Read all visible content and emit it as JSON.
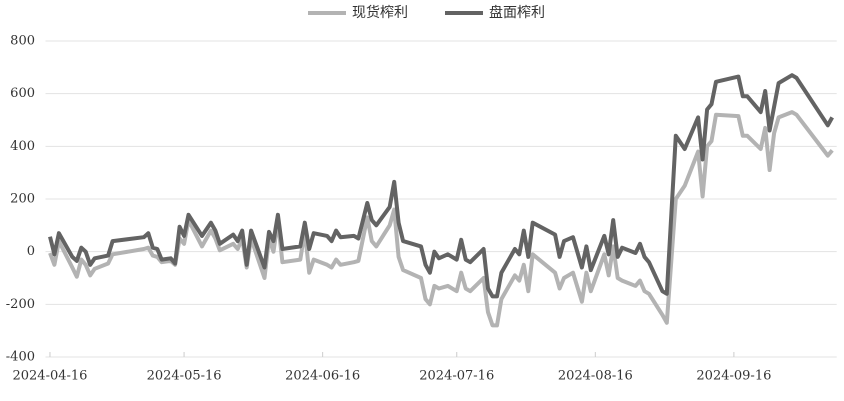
{
  "chart_data": {
    "type": "line",
    "x": [
      "2024-04-16",
      "2024-04-17",
      "2024-04-18",
      "2024-04-21",
      "2024-04-22",
      "2024-04-23",
      "2024-04-24",
      "2024-04-25",
      "2024-04-26",
      "2024-04-29",
      "2024-04-30",
      "2024-05-07",
      "2024-05-08",
      "2024-05-09",
      "2024-05-10",
      "2024-05-11",
      "2024-05-13",
      "2024-05-14",
      "2024-05-15",
      "2024-05-16",
      "2024-05-17",
      "2024-05-20",
      "2024-05-22",
      "2024-05-23",
      "2024-05-24",
      "2024-05-27",
      "2024-05-28",
      "2024-05-29",
      "2024-05-30",
      "2024-05-31",
      "2024-06-03",
      "2024-06-04",
      "2024-06-05",
      "2024-06-06",
      "2024-06-07",
      "2024-06-11",
      "2024-06-12",
      "2024-06-13",
      "2024-06-14",
      "2024-06-17",
      "2024-06-18",
      "2024-06-19",
      "2024-06-20",
      "2024-06-23",
      "2024-06-24",
      "2024-06-26",
      "2024-06-27",
      "2024-06-28",
      "2024-07-01",
      "2024-07-02",
      "2024-07-03",
      "2024-07-04",
      "2024-07-08",
      "2024-07-09",
      "2024-07-10",
      "2024-07-11",
      "2024-07-12",
      "2024-07-14",
      "2024-07-16",
      "2024-07-17",
      "2024-07-18",
      "2024-07-19",
      "2024-07-22",
      "2024-07-23",
      "2024-07-24",
      "2024-07-25",
      "2024-07-26",
      "2024-07-29",
      "2024-07-30",
      "2024-07-31",
      "2024-08-01",
      "2024-08-02",
      "2024-08-07",
      "2024-08-08",
      "2024-08-09",
      "2024-08-11",
      "2024-08-13",
      "2024-08-14",
      "2024-08-15",
      "2024-08-18",
      "2024-08-19",
      "2024-08-20",
      "2024-08-21",
      "2024-08-22",
      "2024-08-25",
      "2024-08-26",
      "2024-08-27",
      "2024-08-28",
      "2024-08-31",
      "2024-09-01",
      "2024-09-03",
      "2024-09-05",
      "2024-09-08",
      "2024-09-09",
      "2024-09-10",
      "2024-09-11",
      "2024-09-12",
      "2024-09-17",
      "2024-09-18",
      "2024-09-19",
      "2024-09-22",
      "2024-09-23",
      "2024-09-24",
      "2024-09-25",
      "2024-09-26",
      "2024-09-29",
      "2024-09-30",
      "2024-10-07",
      "2024-10-08"
    ],
    "series": [
      {
        "name": "现货榨利",
        "color": "#b3b3b3",
        "values": [
          -5,
          -50,
          40,
          -60,
          -95,
          -30,
          -50,
          -90,
          -65,
          -45,
          -10,
          10,
          15,
          -15,
          -20,
          -40,
          -35,
          -50,
          50,
          30,
          120,
          20,
          80,
          50,
          5,
          30,
          10,
          50,
          -60,
          50,
          -100,
          50,
          0,
          120,
          -40,
          -30,
          80,
          -80,
          -30,
          -50,
          -60,
          -30,
          -50,
          -40,
          -35,
          130,
          40,
          20,
          100,
          160,
          -20,
          -70,
          -100,
          -180,
          -200,
          -130,
          -140,
          -130,
          -150,
          -80,
          -140,
          -150,
          -100,
          -230,
          -280,
          -280,
          -180,
          -90,
          -110,
          -50,
          -150,
          -10,
          -80,
          -140,
          -100,
          -80,
          -190,
          -80,
          -150,
          -10,
          -90,
          20,
          -100,
          -110,
          -130,
          -110,
          -150,
          -160,
          -240,
          -270,
          200,
          250,
          380,
          210,
          400,
          420,
          520,
          515,
          440,
          440,
          390,
          470,
          310,
          450,
          510,
          530,
          520,
          365,
          385
        ]
      },
      {
        "name": "盘面榨利",
        "color": "#636363",
        "values": [
          57,
          -10,
          70,
          -20,
          -35,
          15,
          0,
          -50,
          -25,
          -15,
          40,
          55,
          70,
          15,
          10,
          -30,
          -25,
          -45,
          95,
          60,
          140,
          60,
          110,
          80,
          30,
          65,
          40,
          80,
          -50,
          80,
          -60,
          75,
          40,
          140,
          10,
          20,
          110,
          10,
          70,
          60,
          40,
          80,
          55,
          60,
          50,
          185,
          120,
          100,
          170,
          265,
          110,
          40,
          20,
          -50,
          -80,
          0,
          -25,
          -10,
          -30,
          45,
          -30,
          -40,
          10,
          -140,
          -170,
          -170,
          -80,
          10,
          -10,
          80,
          -20,
          110,
          65,
          -20,
          40,
          55,
          -60,
          20,
          -70,
          60,
          -10,
          120,
          -20,
          15,
          -5,
          30,
          -20,
          -40,
          -150,
          -160,
          440,
          390,
          510,
          350,
          540,
          560,
          645,
          665,
          590,
          590,
          530,
          610,
          460,
          550,
          640,
          670,
          660,
          480,
          510
        ]
      }
    ],
    "xlim": [
      "2024-04-15",
      "2024-10-09"
    ],
    "xticks": [
      "2024-04-16",
      "2024-05-16",
      "2024-06-16",
      "2024-07-16",
      "2024-08-16",
      "2024-09-16"
    ],
    "ylim": [
      -400,
      800
    ],
    "yticks": [
      -400,
      -200,
      0,
      200,
      400,
      600,
      800
    ],
    "grid": true,
    "legend": "top"
  }
}
